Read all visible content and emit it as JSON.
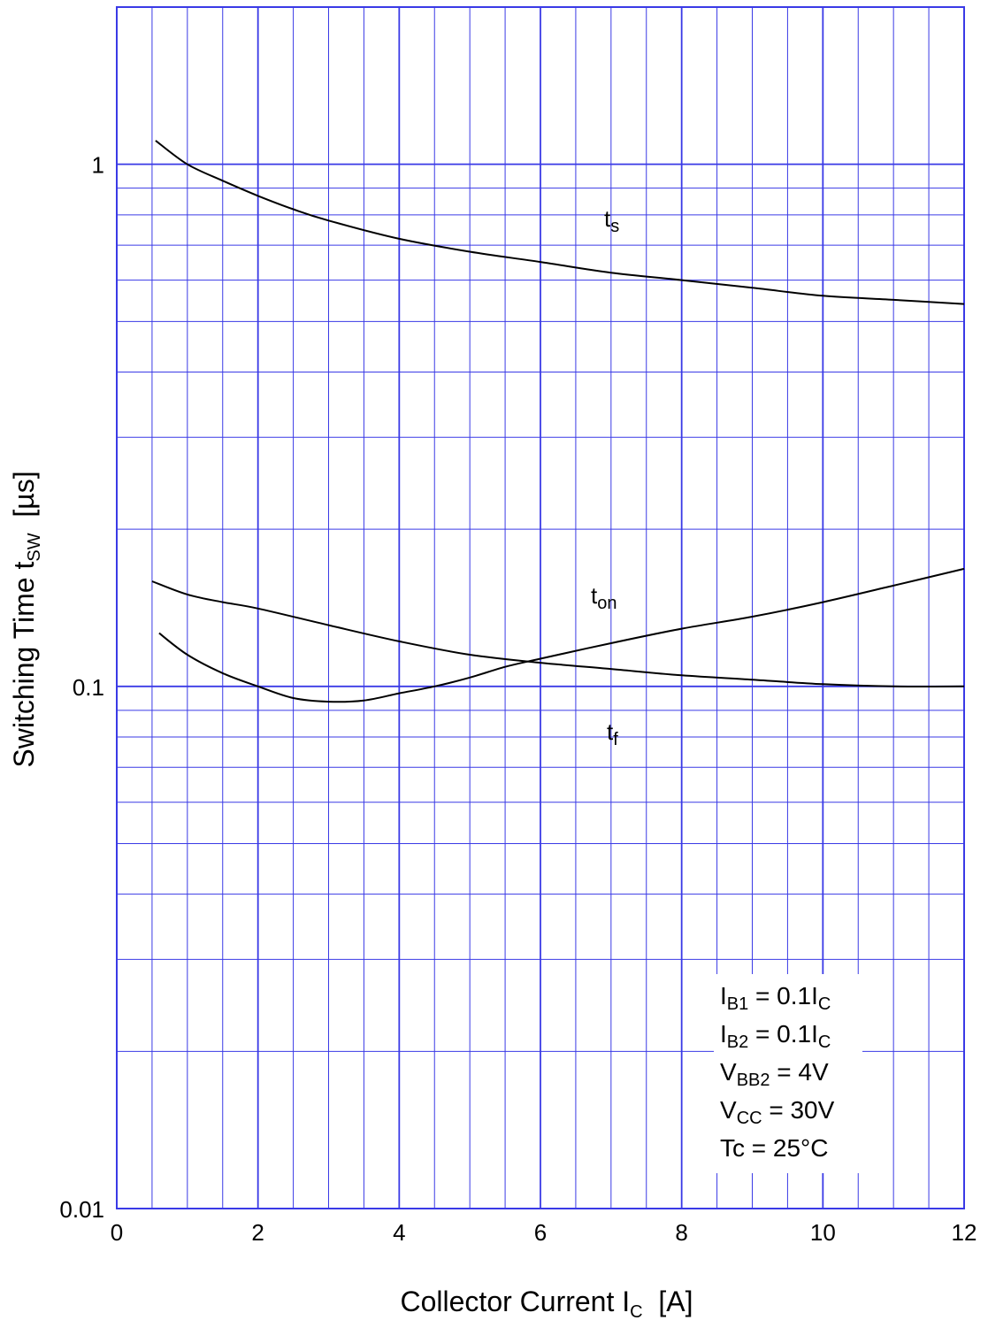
{
  "chart_data": {
    "type": "line",
    "xlabel": {
      "main": "Collector Current  I",
      "sub": "C",
      "unit": "  [A]"
    },
    "ylabel": {
      "main": "Switching Time  t",
      "sub": "SW",
      "unit": "  [µs]"
    },
    "xlim": [
      0,
      12
    ],
    "ylim": [
      0.01,
      2
    ],
    "yscale": "log",
    "grid": true,
    "x_ticks": [
      "0",
      "2",
      "4",
      "6",
      "8",
      "10",
      "12"
    ],
    "y_ticks": [
      {
        "value": 0.01,
        "label": "0.01"
      },
      {
        "value": 0.1,
        "label": "0.1"
      },
      {
        "value": 1,
        "label": "1"
      }
    ],
    "series": [
      {
        "name": "t",
        "name_sub": "s",
        "x": [
          0.55,
          1.0,
          1.5,
          2.0,
          2.5,
          3.0,
          4.0,
          5.0,
          6.0,
          7.0,
          8.0,
          9.0,
          10.0,
          11.0,
          12.0
        ],
        "y": [
          1.11,
          1.0,
          0.93,
          0.87,
          0.82,
          0.78,
          0.72,
          0.68,
          0.65,
          0.62,
          0.6,
          0.58,
          0.56,
          0.55,
          0.54
        ]
      },
      {
        "name": "t",
        "name_sub": "on",
        "x": [
          0.5,
          1.0,
          1.5,
          2.0,
          3.0,
          4.0,
          5.0,
          6.0,
          7.0,
          8.0,
          9.0,
          10.0,
          11.0,
          12.0
        ],
        "y": [
          0.159,
          0.15,
          0.145,
          0.141,
          0.131,
          0.122,
          0.115,
          0.111,
          0.108,
          0.105,
          0.103,
          0.101,
          0.1,
          0.1
        ]
      },
      {
        "name": "t",
        "name_sub": "f",
        "x": [
          0.6,
          1.0,
          1.5,
          2.0,
          2.5,
          3.0,
          3.5,
          4.0,
          4.5,
          5.0,
          5.5,
          6.0,
          7.0,
          8.0,
          9.0,
          10.0,
          11.0,
          12.0
        ],
        "y": [
          0.1265,
          0.115,
          0.106,
          0.1,
          0.095,
          0.0935,
          0.094,
          0.097,
          0.1,
          0.104,
          0.109,
          0.113,
          0.121,
          0.129,
          0.136,
          0.145,
          0.156,
          0.168
        ]
      }
    ],
    "conditions": [
      {
        "main": "I",
        "sub": "B1",
        "rest": " = 0.1I",
        "sub2": "C"
      },
      {
        "main": "I",
        "sub": "B2",
        "rest": " = 0.1I",
        "sub2": "C"
      },
      {
        "main": "V",
        "sub": "BB2",
        "rest": " = 4V",
        "sub2": ""
      },
      {
        "main": "V",
        "sub": "CC",
        "rest": " = 30V",
        "sub2": ""
      },
      {
        "main": "Tc = 25°C",
        "sub": "",
        "rest": "",
        "sub2": ""
      }
    ],
    "colors": {
      "grid": "#3a3ae6",
      "curve": "#000000",
      "background": "#ffffff"
    }
  }
}
